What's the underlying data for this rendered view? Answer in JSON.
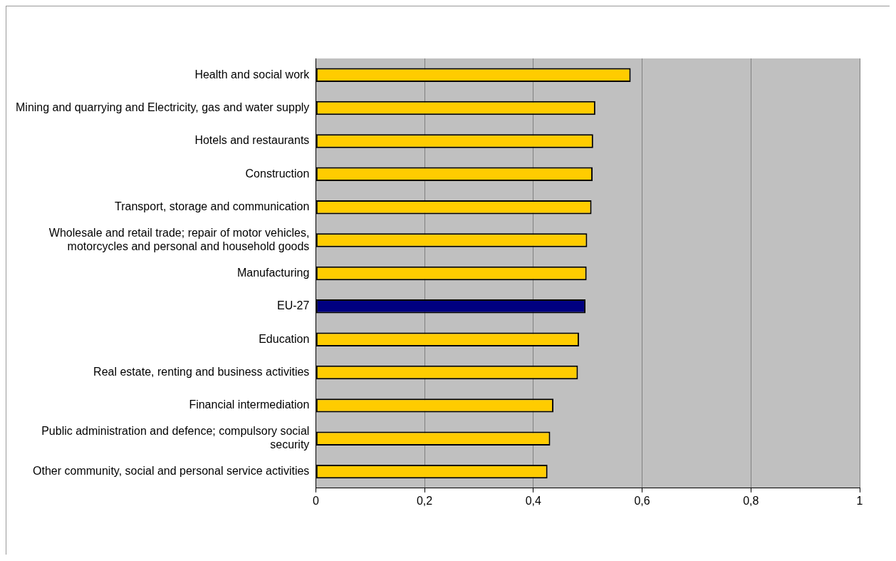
{
  "chart_data": {
    "type": "bar",
    "orientation": "horizontal",
    "categories": [
      "Health and social work",
      "Mining and quarrying and Electricity, gas and water supply",
      "Hotels and restaurants",
      "Construction",
      "Transport, storage and communication",
      "Wholesale and retail trade; repair of motor vehicles, motorcycles and personal and household goods",
      "Manufacturing",
      "EU-27",
      "Education",
      "Real estate, renting and business activities",
      "Financial intermediation",
      "Public administration and defence; compulsory social security",
      "Other community, social and personal service activities"
    ],
    "values": [
      0.579,
      0.514,
      0.51,
      0.509,
      0.507,
      0.499,
      0.498,
      0.496,
      0.484,
      0.482,
      0.437,
      0.431,
      0.426
    ],
    "colors": [
      "#ffcc00",
      "#ffcc00",
      "#ffcc00",
      "#ffcc00",
      "#ffcc00",
      "#ffcc00",
      "#ffcc00",
      "#000080",
      "#ffcc00",
      "#ffcc00",
      "#ffcc00",
      "#ffcc00",
      "#ffcc00"
    ],
    "xlim": [
      0,
      1
    ],
    "xticks": [
      0,
      {
        "value": 0.2,
        "label": "0,2"
      },
      {
        "value": 0.4,
        "label": "0,4"
      },
      {
        "value": 0.6,
        "label": "0,6"
      },
      {
        "value": 0.8,
        "label": "0,8"
      },
      1
    ],
    "grid": "x",
    "legend": false
  }
}
